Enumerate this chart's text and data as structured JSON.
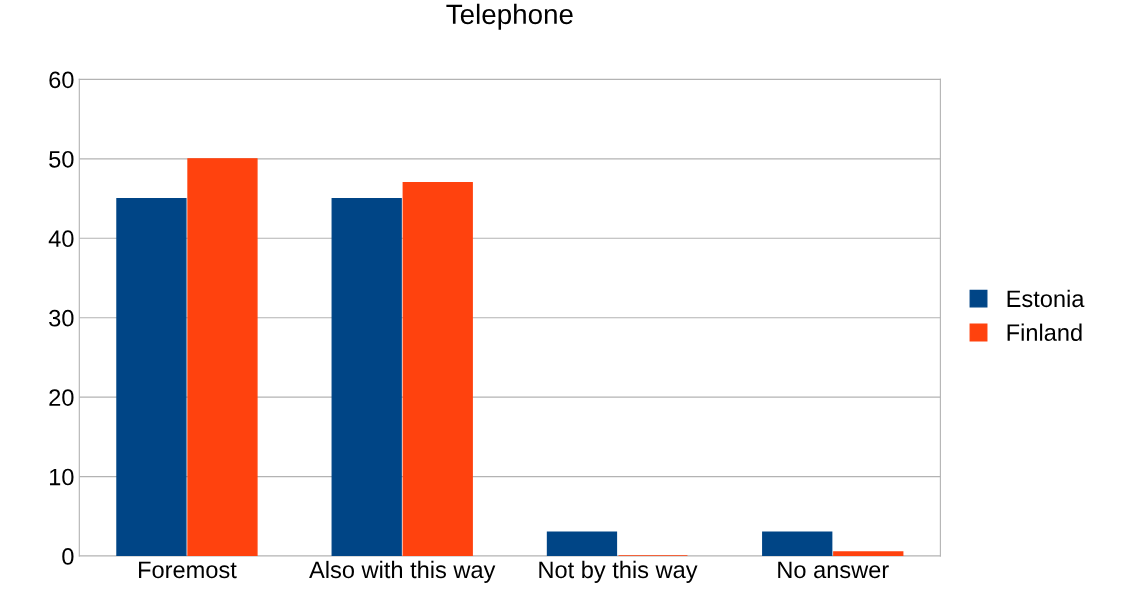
{
  "chart_data": {
    "type": "bar",
    "title": "Telephone",
    "categories": [
      "Foremost",
      "Also with this way",
      "Not by this way",
      "No answer"
    ],
    "series": [
      {
        "name": "Estonia",
        "color": "#004586",
        "values": [
          45,
          45,
          3,
          3
        ]
      },
      {
        "name": "Finland",
        "color": "#ff420e",
        "values": [
          50,
          47,
          0,
          0.5
        ]
      }
    ],
    "ylim": [
      0,
      60
    ],
    "yticks": [
      0,
      10,
      20,
      30,
      40,
      50,
      60
    ],
    "grid": "y",
    "legend": "right"
  }
}
